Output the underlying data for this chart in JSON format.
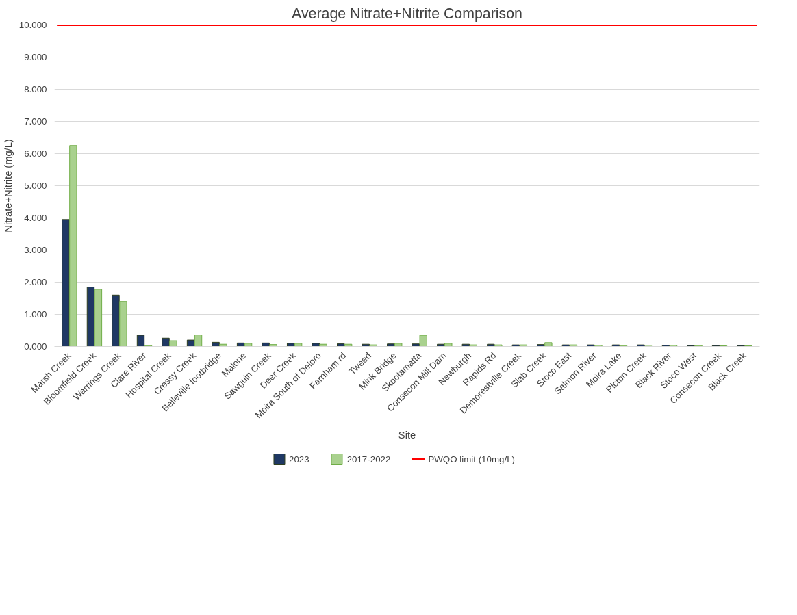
{
  "chart_data": {
    "type": "bar",
    "title": "Average Nitrate+Nitrite Comparison",
    "xlabel": "Site",
    "ylabel": "Nitrate+Nitrite (mg/L)",
    "categories": [
      "Marsh Creek",
      "Bloomfield Creek",
      "Warrings Creek",
      "Clare River",
      "Hospital Creek",
      "Cressy Creek",
      "Belleville footbridge",
      "Malone",
      "Sawguin Creek",
      "Deer Creek",
      "Moira South of Deloro",
      "Farnham rd",
      "Tweed",
      "Mink Bridge",
      "Skootamatta",
      "Consecon Mill Dam",
      "Newburgh",
      "Rapids Rd",
      "Demorestville Creek",
      "Slab Creek",
      "Stoco East",
      "Salmon River",
      "Moira Lake",
      "Picton Creek",
      "Black River",
      "Stoco West",
      "Consecon Creek",
      "Black Creek"
    ],
    "series": [
      {
        "name": "2023",
        "color": "#1f3864",
        "values": [
          3.95,
          1.85,
          1.6,
          0.35,
          0.26,
          0.2,
          0.13,
          0.11,
          0.11,
          0.1,
          0.1,
          0.09,
          0.07,
          0.08,
          0.08,
          0.07,
          0.07,
          0.07,
          0.05,
          0.06,
          0.05,
          0.05,
          0.05,
          0.05,
          0.04,
          0.03,
          0.03,
          0.03
        ]
      },
      {
        "name": "2017-2022",
        "color": "#a9d18e",
        "values": [
          6.25,
          1.78,
          1.4,
          0.03,
          0.18,
          0.36,
          0.07,
          0.1,
          0.06,
          0.1,
          0.07,
          0.07,
          0.05,
          0.1,
          0.35,
          0.1,
          0.05,
          0.05,
          0.05,
          0.12,
          0.05,
          0.04,
          0.03,
          0.01,
          0.04,
          0.03,
          0.02,
          0.02
        ]
      }
    ],
    "ylim": [
      0,
      10
    ],
    "yticks": [
      {
        "value": 0,
        "label": "0.000"
      },
      {
        "value": 1,
        "label": "1.000"
      },
      {
        "value": 2,
        "label": "2.000"
      },
      {
        "value": 3,
        "label": "3.000"
      },
      {
        "value": 4,
        "label": "4.000"
      },
      {
        "value": 5,
        "label": "5.000"
      },
      {
        "value": 6,
        "label": "6.000"
      },
      {
        "value": 7,
        "label": "7.000"
      },
      {
        "value": 8,
        "label": "8.000"
      },
      {
        "value": 9,
        "label": "9.000"
      },
      {
        "value": 10,
        "label": "10.000"
      }
    ],
    "ref_lines": [
      {
        "axis": "y",
        "value": 10,
        "label": "PWQO limit (10mg/L)",
        "color": "#ff0000",
        "line_style": "solid"
      }
    ],
    "grid": "y",
    "legend": "bottom"
  }
}
